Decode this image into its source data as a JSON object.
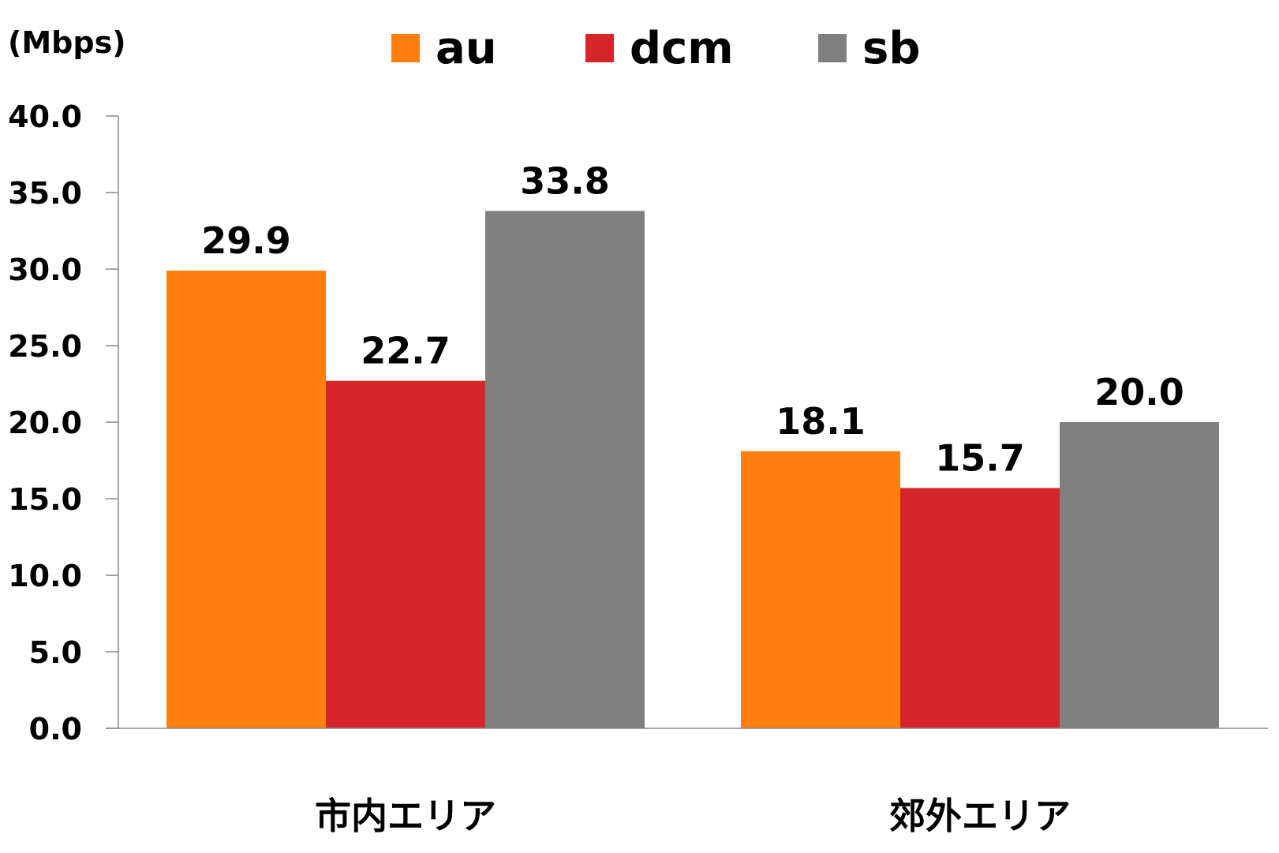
{
  "chart_data": {
    "type": "bar",
    "unit_label": "(Mbps)",
    "categories": [
      "市内エリア",
      "郊外エリア"
    ],
    "series": [
      {
        "name": "au",
        "color": "#ff8010",
        "values": [
          29.9,
          18.1
        ]
      },
      {
        "name": "dcm",
        "color": "#d42528",
        "values": [
          22.7,
          15.7
        ]
      },
      {
        "name": "sb",
        "color": "#808080",
        "values": [
          33.8,
          20.0
        ]
      }
    ],
    "ylim": [
      0,
      40
    ],
    "yticks": [
      "0.0",
      "5.0",
      "10.0",
      "15.0",
      "20.0",
      "25.0",
      "30.0",
      "35.0",
      "40.0"
    ],
    "legend_position": "top",
    "grid": false
  }
}
